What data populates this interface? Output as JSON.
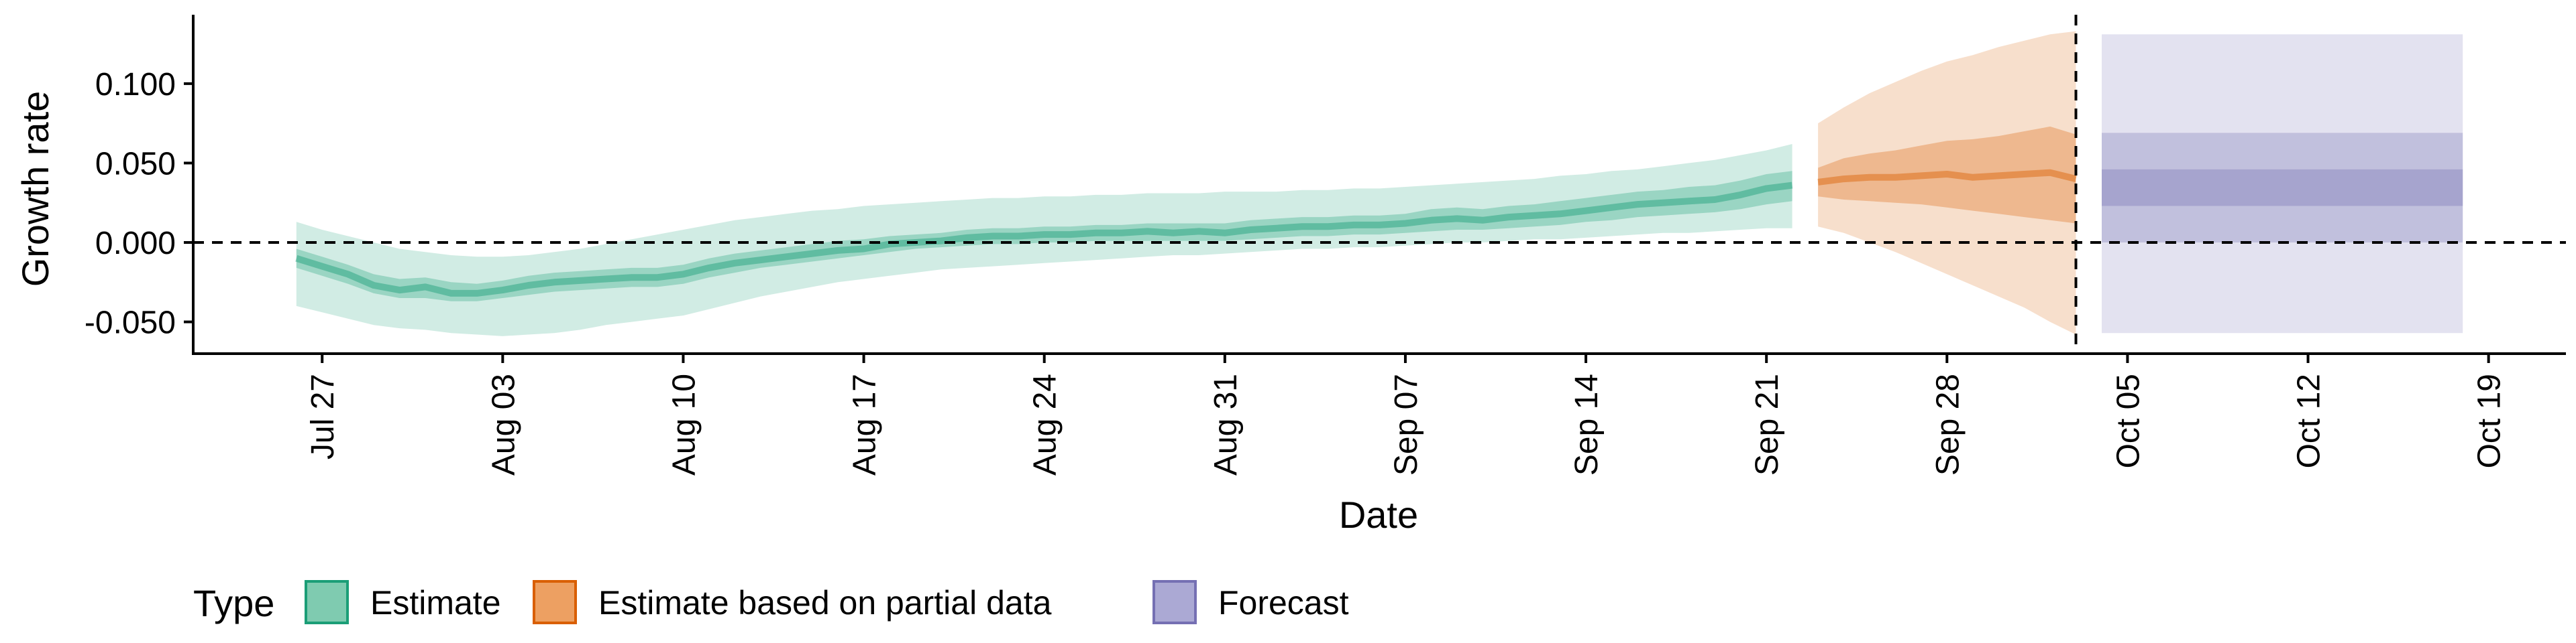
{
  "chart_data": {
    "type": "area",
    "xlabel": "Date",
    "ylabel": "Growth rate",
    "ylim": [
      -0.07,
      0.14
    ],
    "xlim": [
      "2020-07-22",
      "2020-10-22"
    ],
    "y_ticks": [
      {
        "value": -0.05,
        "label": "-0.050"
      },
      {
        "value": 0.0,
        "label": "0.000"
      },
      {
        "value": 0.05,
        "label": "0.050"
      },
      {
        "value": 0.1,
        "label": "0.100"
      }
    ],
    "x_ticks": [
      {
        "date": "2020-07-27",
        "label": "Jul 27"
      },
      {
        "date": "2020-08-03",
        "label": "Aug 03"
      },
      {
        "date": "2020-08-10",
        "label": "Aug 10"
      },
      {
        "date": "2020-08-17",
        "label": "Aug 17"
      },
      {
        "date": "2020-08-24",
        "label": "Aug 24"
      },
      {
        "date": "2020-08-31",
        "label": "Aug 31"
      },
      {
        "date": "2020-09-07",
        "label": "Sep 07"
      },
      {
        "date": "2020-09-14",
        "label": "Sep 14"
      },
      {
        "date": "2020-09-21",
        "label": "Sep 21"
      },
      {
        "date": "2020-09-28",
        "label": "Sep 28"
      },
      {
        "date": "2020-10-05",
        "label": "Oct 05"
      },
      {
        "date": "2020-10-12",
        "label": "Oct 12"
      },
      {
        "date": "2020-10-19",
        "label": "Oct 19"
      }
    ],
    "hline": 0,
    "vline": "2020-10-03",
    "grid": false,
    "legend": {
      "title": "Type",
      "placement": "bottom-left",
      "items": [
        {
          "label": "Estimate",
          "fill": "#7fcbb0",
          "border": "#1b9e77"
        },
        {
          "label": "Estimate based on partial data",
          "fill": "#eda062",
          "border": "#d95f02"
        },
        {
          "label": "Forecast",
          "fill": "#aba9d4",
          "border": "#7570b3"
        }
      ]
    },
    "series": [
      {
        "name": "Estimate",
        "color": "#1b9e77",
        "dates": [
          "2020-07-26",
          "2020-07-27",
          "2020-07-28",
          "2020-07-29",
          "2020-07-30",
          "2020-07-31",
          "2020-08-01",
          "2020-08-02",
          "2020-08-03",
          "2020-08-04",
          "2020-08-05",
          "2020-08-06",
          "2020-08-07",
          "2020-08-08",
          "2020-08-09",
          "2020-08-10",
          "2020-08-11",
          "2020-08-12",
          "2020-08-13",
          "2020-08-14",
          "2020-08-15",
          "2020-08-16",
          "2020-08-17",
          "2020-08-18",
          "2020-08-19",
          "2020-08-20",
          "2020-08-21",
          "2020-08-22",
          "2020-08-23",
          "2020-08-24",
          "2020-08-25",
          "2020-08-26",
          "2020-08-27",
          "2020-08-28",
          "2020-08-29",
          "2020-08-30",
          "2020-08-31",
          "2020-09-01",
          "2020-09-02",
          "2020-09-03",
          "2020-09-04",
          "2020-09-05",
          "2020-09-06",
          "2020-09-07",
          "2020-09-08",
          "2020-09-09",
          "2020-09-10",
          "2020-09-11",
          "2020-09-12",
          "2020-09-13",
          "2020-09-14",
          "2020-09-15",
          "2020-09-16",
          "2020-09-17",
          "2020-09-18",
          "2020-09-19",
          "2020-09-20",
          "2020-09-21",
          "2020-09-22"
        ],
        "median": [
          -0.01,
          -0.015,
          -0.02,
          -0.027,
          -0.03,
          -0.028,
          -0.032,
          -0.032,
          -0.03,
          -0.027,
          -0.025,
          -0.024,
          -0.023,
          -0.022,
          -0.022,
          -0.02,
          -0.016,
          -0.013,
          -0.011,
          -0.009,
          -0.007,
          -0.005,
          -0.004,
          -0.001,
          0.0,
          0.001,
          0.003,
          0.004,
          0.004,
          0.005,
          0.005,
          0.006,
          0.006,
          0.007,
          0.006,
          0.007,
          0.006,
          0.008,
          0.009,
          0.01,
          0.01,
          0.011,
          0.011,
          0.012,
          0.014,
          0.015,
          0.014,
          0.016,
          0.017,
          0.018,
          0.02,
          0.022,
          0.024,
          0.025,
          0.026,
          0.027,
          0.03,
          0.034,
          0.036
        ],
        "lower50": [
          -0.016,
          -0.021,
          -0.026,
          -0.032,
          -0.035,
          -0.035,
          -0.037,
          -0.037,
          -0.035,
          -0.033,
          -0.031,
          -0.03,
          -0.029,
          -0.028,
          -0.028,
          -0.026,
          -0.022,
          -0.019,
          -0.016,
          -0.014,
          -0.012,
          -0.01,
          -0.008,
          -0.006,
          -0.004,
          -0.003,
          -0.002,
          -0.001,
          -0.001,
          0.0,
          0.0,
          0.001,
          0.001,
          0.001,
          0.001,
          0.001,
          0.001,
          0.002,
          0.003,
          0.004,
          0.004,
          0.005,
          0.005,
          0.006,
          0.007,
          0.008,
          0.008,
          0.009,
          0.01,
          0.011,
          0.013,
          0.014,
          0.016,
          0.017,
          0.018,
          0.019,
          0.021,
          0.024,
          0.026
        ],
        "upper50": [
          -0.004,
          -0.009,
          -0.014,
          -0.02,
          -0.023,
          -0.022,
          -0.025,
          -0.026,
          -0.024,
          -0.021,
          -0.019,
          -0.018,
          -0.017,
          -0.016,
          -0.016,
          -0.014,
          -0.01,
          -0.007,
          -0.005,
          -0.003,
          -0.001,
          0.001,
          0.002,
          0.004,
          0.005,
          0.006,
          0.008,
          0.009,
          0.009,
          0.01,
          0.01,
          0.011,
          0.011,
          0.012,
          0.012,
          0.012,
          0.012,
          0.014,
          0.015,
          0.016,
          0.016,
          0.017,
          0.017,
          0.018,
          0.021,
          0.022,
          0.021,
          0.023,
          0.024,
          0.026,
          0.028,
          0.03,
          0.032,
          0.033,
          0.035,
          0.036,
          0.039,
          0.043,
          0.045
        ],
        "lower90": [
          -0.04,
          -0.044,
          -0.048,
          -0.052,
          -0.054,
          -0.055,
          -0.057,
          -0.058,
          -0.059,
          -0.058,
          -0.057,
          -0.055,
          -0.052,
          -0.05,
          -0.048,
          -0.046,
          -0.042,
          -0.038,
          -0.034,
          -0.031,
          -0.028,
          -0.025,
          -0.023,
          -0.021,
          -0.019,
          -0.017,
          -0.016,
          -0.015,
          -0.014,
          -0.013,
          -0.012,
          -0.011,
          -0.01,
          -0.009,
          -0.008,
          -0.008,
          -0.007,
          -0.006,
          -0.005,
          -0.004,
          -0.004,
          -0.003,
          -0.003,
          -0.002,
          -0.001,
          0.0,
          0.0,
          0.001,
          0.002,
          0.002,
          0.003,
          0.004,
          0.005,
          0.006,
          0.006,
          0.007,
          0.008,
          0.009,
          0.009
        ],
        "upper90": [
          0.013,
          0.008,
          0.004,
          0.0,
          -0.004,
          -0.006,
          -0.008,
          -0.009,
          -0.009,
          -0.008,
          -0.006,
          -0.004,
          -0.001,
          0.002,
          0.005,
          0.008,
          0.011,
          0.014,
          0.016,
          0.018,
          0.02,
          0.021,
          0.023,
          0.024,
          0.025,
          0.026,
          0.027,
          0.028,
          0.028,
          0.029,
          0.029,
          0.03,
          0.03,
          0.031,
          0.031,
          0.031,
          0.032,
          0.032,
          0.032,
          0.033,
          0.033,
          0.034,
          0.034,
          0.035,
          0.036,
          0.037,
          0.038,
          0.039,
          0.04,
          0.042,
          0.043,
          0.045,
          0.046,
          0.048,
          0.05,
          0.052,
          0.055,
          0.058,
          0.062
        ]
      },
      {
        "name": "Estimate based on partial data",
        "color": "#d95f02",
        "dates": [
          "2020-09-23",
          "2020-09-24",
          "2020-09-25",
          "2020-09-26",
          "2020-09-27",
          "2020-09-28",
          "2020-09-29",
          "2020-09-30",
          "2020-10-01",
          "2020-10-02",
          "2020-10-03"
        ],
        "median": [
          0.038,
          0.04,
          0.041,
          0.041,
          0.042,
          0.043,
          0.041,
          0.042,
          0.043,
          0.044,
          0.04
        ],
        "lower50": [
          0.029,
          0.027,
          0.026,
          0.025,
          0.024,
          0.022,
          0.02,
          0.018,
          0.016,
          0.014,
          0.012
        ],
        "upper50": [
          0.047,
          0.053,
          0.056,
          0.058,
          0.061,
          0.064,
          0.065,
          0.067,
          0.07,
          0.073,
          0.068
        ],
        "lower90": [
          0.01,
          0.006,
          0.0,
          -0.006,
          -0.013,
          -0.02,
          -0.027,
          -0.034,
          -0.041,
          -0.05,
          -0.058
        ],
        "upper90": [
          0.075,
          0.085,
          0.094,
          0.101,
          0.108,
          0.114,
          0.118,
          0.123,
          0.127,
          0.131,
          0.133
        ]
      },
      {
        "name": "Forecast",
        "color": "#7570b3",
        "dates": [
          "2020-10-04",
          "2020-10-18"
        ],
        "lower25": [
          0.023,
          0.023
        ],
        "upper25": [
          0.046,
          0.046
        ],
        "lower50": [
          0.0,
          0.0
        ],
        "upper50": [
          0.069,
          0.069
        ],
        "lower90": [
          -0.057,
          -0.057
        ],
        "upper90": [
          0.131,
          0.131
        ]
      }
    ]
  }
}
